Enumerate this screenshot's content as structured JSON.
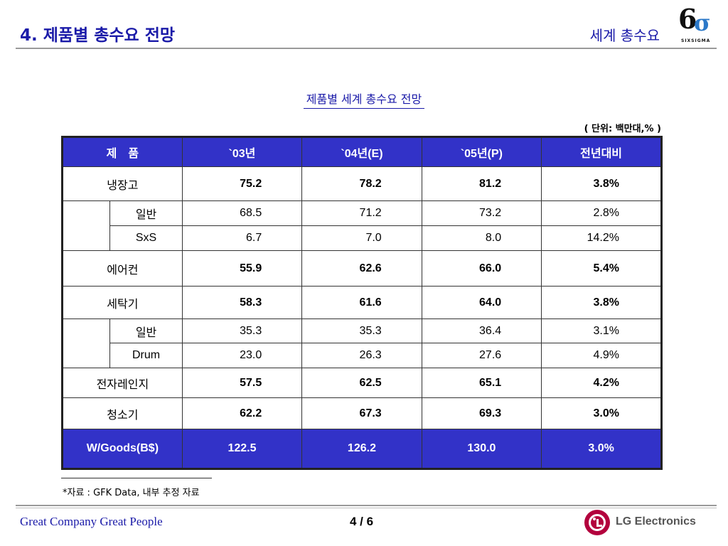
{
  "header": {
    "title": "4. 제품별 총수요 전망",
    "section": "세계 총수요",
    "logo_number": "6",
    "logo_sigma": "σ",
    "logo_sub": "SIXSIGMA"
  },
  "table_title": "제품별 세계 총수요 전망",
  "unit": "( 단위: 백만대,% )",
  "columns": [
    "제　품",
    "`03년",
    "`04년(E)",
    "`05년(P)",
    "전년대비"
  ],
  "rows": [
    {
      "label": "냉장고",
      "v03": "75.2",
      "v04": "78.2",
      "v05": "81.2",
      "yoy": "3.8%"
    },
    {
      "label": "일반",
      "v03": "68.5",
      "v04": "71.2",
      "v05": "73.2",
      "yoy": "2.8%"
    },
    {
      "label": "SxS",
      "v03": "6.7",
      "v04": "7.0",
      "v05": "8.0",
      "yoy": "14.2%"
    },
    {
      "label": "에어컨",
      "v03": "55.9",
      "v04": "62.6",
      "v05": "66.0",
      "yoy": "5.4%"
    },
    {
      "label": "세탁기",
      "v03": "58.3",
      "v04": "61.6",
      "v05": "64.0",
      "yoy": "3.8%"
    },
    {
      "label": "일반",
      "v03": "35.3",
      "v04": "35.3",
      "v05": "36.4",
      "yoy": "3.1%"
    },
    {
      "label": "Drum",
      "v03": "23.0",
      "v04": "26.3",
      "v05": "27.6",
      "yoy": "4.9%"
    },
    {
      "label": "전자레인지",
      "v03": "57.5",
      "v04": "62.5",
      "v05": "65.1",
      "yoy": "4.2%"
    },
    {
      "label": "청소기",
      "v03": "62.2",
      "v04": "67.3",
      "v05": "69.3",
      "yoy": "3.0%"
    },
    {
      "label": "W/Goods(B$)",
      "v03": "122.5",
      "v04": "126.2",
      "v05": "130.0",
      "yoy": "3.0%"
    }
  ],
  "footnote": "*자료 : GFK Data, 내부 추정 자료",
  "footer": {
    "slogan": "Great Company Great People",
    "page": "4 / 6",
    "brand": "LG Electronics"
  },
  "colors": {
    "title_blue": "#1a1aa8",
    "header_fill": "#3232c8",
    "lg_red": "#b3003d"
  }
}
